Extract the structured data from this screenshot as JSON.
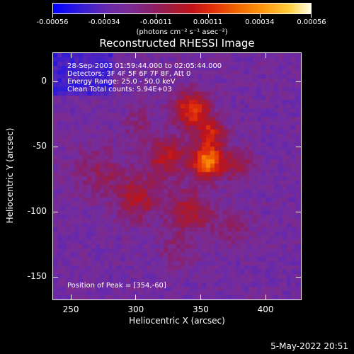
{
  "colorbar": {
    "ticks": [
      "-0.00056",
      "-0.00034",
      "-0.00011",
      "0.00011",
      "0.00034",
      "0.00056"
    ],
    "unit_label": "(photons cm⁻² s⁻¹ asec⁻²)"
  },
  "plot": {
    "title": "Reconstructed RHESSI Image",
    "info": {
      "time_range": "28-Sep-2003 01:59:44.000 to 02:05:44.000",
      "detectors": "Detectors: 3F 4F 5F 6F 7F 8F, Att 0",
      "energy_range": "Energy Range: 25.0 - 50.0 keV",
      "method_counts": "Clean     Total counts: 5.94E+03",
      "peak_position": "Position of Peak = [354,-60]"
    }
  },
  "chart_data": {
    "type": "heatmap",
    "title": "Reconstructed RHESSI Image",
    "xlabel": "Heliocentric X (arcsec)",
    "ylabel": "Heliocentric Y (arcsec)",
    "xlim": [
      236,
      428
    ],
    "ylim": [
      -168,
      22
    ],
    "x_ticks": [
      "250",
      "300",
      "350",
      "400"
    ],
    "y_ticks": [
      "0",
      "-50",
      "-100",
      "-150"
    ],
    "x_tick_values": [
      250,
      300,
      350,
      400
    ],
    "y_tick_values": [
      0,
      -50,
      -100,
      -150
    ],
    "colorbar_range": [
      -0.00056,
      0.00056
    ],
    "peak": [
      354,
      -60
    ]
  },
  "footer": {
    "date": "5-May-2022 20:51"
  }
}
